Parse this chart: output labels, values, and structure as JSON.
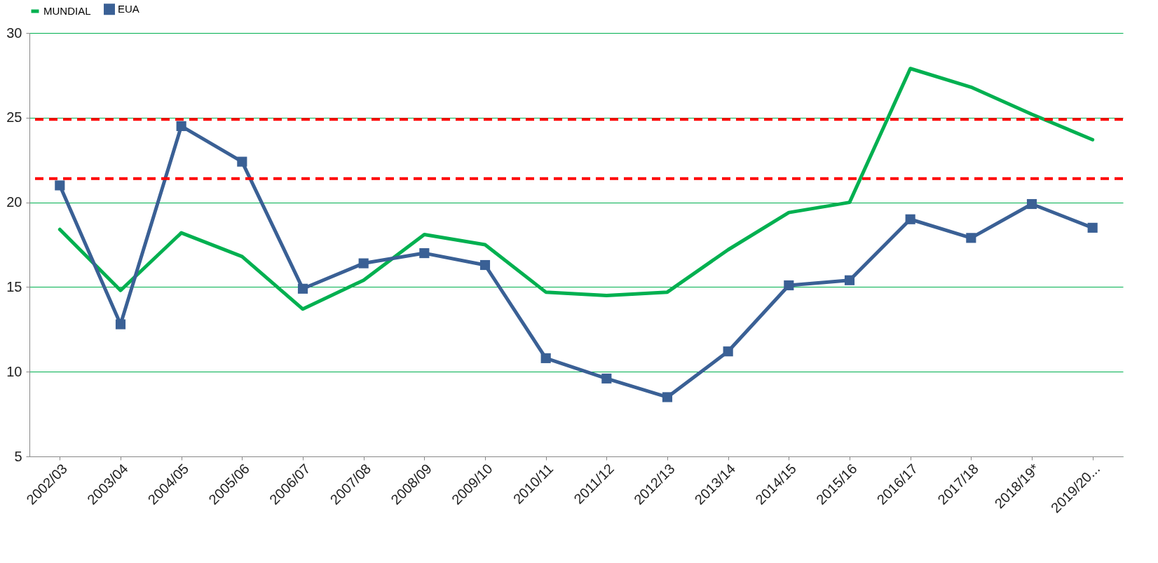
{
  "chart_data": {
    "type": "line",
    "categories": [
      "2002/03",
      "2003/04",
      "2004/05",
      "2005/06",
      "2006/07",
      "2007/08",
      "2008/09",
      "2009/10",
      "2010/11",
      "2011/12",
      "2012/13",
      "2013/14",
      "2014/15",
      "2015/16",
      "2016/17",
      "2017/18",
      "2018/19*",
      "2019/20..."
    ],
    "series": [
      {
        "name": "MUNDIAL",
        "color": "#00b050",
        "values": [
          18.4,
          14.8,
          18.2,
          16.8,
          13.7,
          15.4,
          18.1,
          17.5,
          14.7,
          14.5,
          14.7,
          17.2,
          19.4,
          20.0,
          27.9,
          26.8,
          25.2,
          23.7
        ]
      },
      {
        "name": "EUA",
        "color": "#3a6095",
        "marker": "square",
        "values": [
          21.0,
          12.8,
          24.5,
          22.4,
          14.9,
          16.4,
          17.0,
          16.3,
          10.8,
          9.6,
          8.5,
          11.2,
          15.1,
          15.4,
          19.0,
          17.9,
          19.9,
          18.5
        ]
      }
    ],
    "ylim": [
      5,
      30
    ],
    "yticks": [
      5,
      10,
      15,
      20,
      25,
      30
    ],
    "grid": "y",
    "legend": "top",
    "ref_lines": [
      {
        "axis": "y",
        "value": 24.9,
        "color": "#ff0000",
        "line_style": "dashed"
      },
      {
        "axis": "y",
        "value": 21.4,
        "color": "#ff0000",
        "line_style": "dashed"
      }
    ]
  }
}
